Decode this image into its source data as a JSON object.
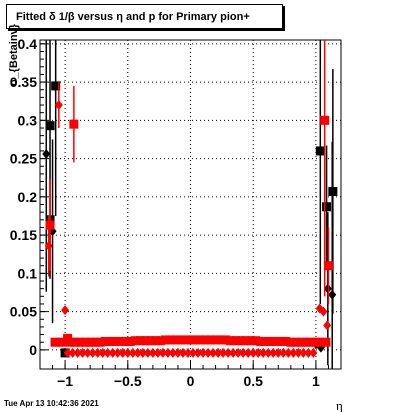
{
  "window": {
    "title": "Fitted δ 1/β versus η and p for Primary pion+",
    "timestamp": "Tue Apr 13 10:42:36 2021"
  },
  "chart_data": {
    "type": "scatter",
    "title": "Fitted δ 1/β versus η and p for Primary pion+",
    "xlabel": "η",
    "ylabel": "σ_{Betainv}",
    "xlim": [
      -1.2,
      1.2
    ],
    "ylim": [
      -0.025,
      0.405
    ],
    "grid": true,
    "xticks": [
      {
        "v": -1,
        "label": "−1"
      },
      {
        "v": -0.5,
        "label": "−0.5"
      },
      {
        "v": 0,
        "label": "0"
      },
      {
        "v": 0.5,
        "label": "0.5"
      },
      {
        "v": 1,
        "label": "1"
      }
    ],
    "yticks": [
      {
        "v": 0,
        "label": "0"
      },
      {
        "v": 0.05,
        "label": "0.05"
      },
      {
        "v": 0.1,
        "label": "0.1"
      },
      {
        "v": 0.15,
        "label": "0.15"
      },
      {
        "v": 0.2,
        "label": "0.2"
      },
      {
        "v": 0.25,
        "label": "0.25"
      },
      {
        "v": 0.3,
        "label": "0.3"
      },
      {
        "v": 0.35,
        "label": "0.35"
      },
      {
        "v": 0.4,
        "label": "0.4"
      }
    ],
    "colors": {
      "black": "#000000",
      "red": "#ff0000"
    },
    "series": [
      {
        "color": "#000000",
        "marker": "square",
        "points": [
          {
            "x": -1.12,
            "y": 0.293,
            "e": 0.2
          },
          {
            "x": -1.075,
            "y": 0.345,
            "e": 0.17
          },
          {
            "x": -1.12,
            "y": 0.17,
            "e": 0.0
          },
          {
            "x": 1.035,
            "y": 0.26,
            "e": 0.2
          },
          {
            "x": 1.085,
            "y": 0.187,
            "e": 0.08
          },
          {
            "x": 1.135,
            "y": 0.207,
            "e": 0.16
          },
          {
            "x": -1.0,
            "y": -0.004,
            "e": 0.0
          },
          {
            "x": 1.025,
            "y": 0.008,
            "e": 0.0
          }
        ]
      },
      {
        "color": "#000000",
        "marker": "diamond",
        "points": [
          {
            "x": -1.15,
            "y": 0.256,
            "e": 0.18
          },
          {
            "x": -1.1,
            "y": 0.155,
            "e": 0.12
          },
          {
            "x": 1.095,
            "y": 0.08,
            "e": 0.1
          },
          {
            "x": 1.13,
            "y": 0.072,
            "e": 0.2
          },
          {
            "x": 1.04,
            "y": 0.003,
            "e": 0.0
          }
        ]
      },
      {
        "color": "#ff0000",
        "marker": "square",
        "points": [
          {
            "x": -1.12,
            "y": 0.163,
            "e": 0.06
          },
          {
            "x": -0.93,
            "y": 0.295,
            "e": 0.05
          },
          {
            "x": 1.07,
            "y": 0.3,
            "e": 0.23
          },
          {
            "x": 1.1,
            "y": 0.11,
            "e": 0.05
          },
          {
            "x": -1.08,
            "y": 0.01,
            "e": 0.0
          },
          {
            "x": -1.03,
            "y": 0.01,
            "e": 0.0
          },
          {
            "x": -0.98,
            "y": 0.015,
            "e": 0.0
          },
          {
            "x": 1.04,
            "y": 0.01,
            "e": 0.0
          },
          {
            "x": 1.08,
            "y": 0.01,
            "e": 0.0
          }
        ]
      },
      {
        "color": "#ff0000",
        "marker": "diamond",
        "points": [
          {
            "x": -1.13,
            "y": 0.136,
            "e": 0.04
          },
          {
            "x": -1.05,
            "y": 0.32,
            "e": 0.03
          },
          {
            "x": -1.0,
            "y": 0.052,
            "e": 0.0
          },
          {
            "x": 1.03,
            "y": 0.054,
            "e": 0.0
          },
          {
            "x": 1.06,
            "y": 0.05,
            "e": 0.0
          },
          {
            "x": 1.09,
            "y": 0.032,
            "e": 0.0
          }
        ]
      },
      {
        "color": "#ff0000",
        "marker": "square-band",
        "x_range": [
          -0.96,
          1.03
        ],
        "x_step": 0.04,
        "y_profile": [
          0.01,
          0.011,
          0.012,
          0.013,
          0.013,
          0.012,
          0.011,
          0.01
        ]
      },
      {
        "color": "#ff0000",
        "marker": "diamond-band",
        "x_range": [
          -0.98,
          0.98
        ],
        "x_step": 0.04,
        "y_profile": [
          -0.004,
          -0.004,
          -0.004,
          -0.004,
          -0.004
        ]
      }
    ]
  }
}
